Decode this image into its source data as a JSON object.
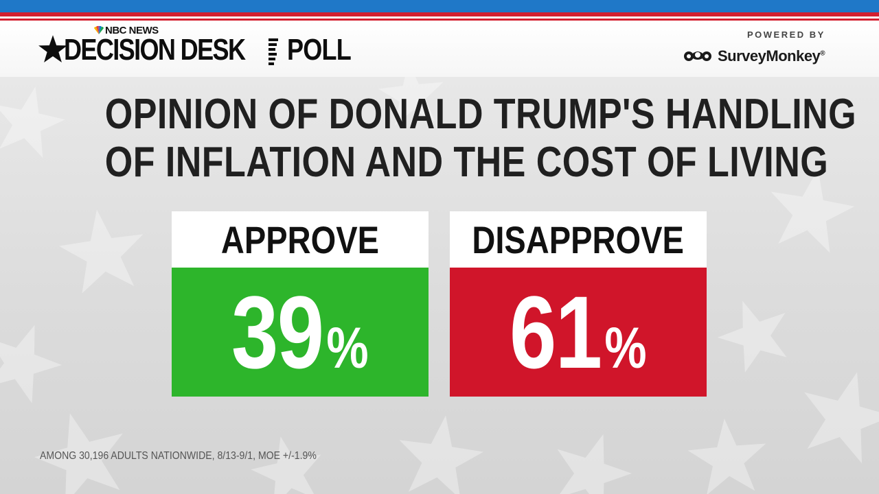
{
  "header": {
    "network": "NBC NEWS",
    "brand_title": "DECISION DESK",
    "brand_suffix": "POLL",
    "powered_by": "POWERED BY",
    "partner": "SurveyMonkey",
    "partner_mark": "®"
  },
  "colors": {
    "approve": "#2db52b",
    "disapprove": "#d0152a",
    "stripe_blue": "#1f78c8",
    "stripe_red": "#d42030"
  },
  "chart_data": {
    "type": "bar",
    "title_lines": [
      "OPINION OF DONALD TRUMP'S HANDLING",
      "OF INFLATION AND THE COST OF LIVING"
    ],
    "categories": [
      "APPROVE",
      "DISAPPROVE"
    ],
    "values": [
      39,
      61
    ],
    "value_labels": [
      "39",
      "61"
    ],
    "unit": "%"
  },
  "footnote": "AMONG 30,196 ADULTS NATIONWIDE, 8/13-9/1, MOE +/-1.9%"
}
